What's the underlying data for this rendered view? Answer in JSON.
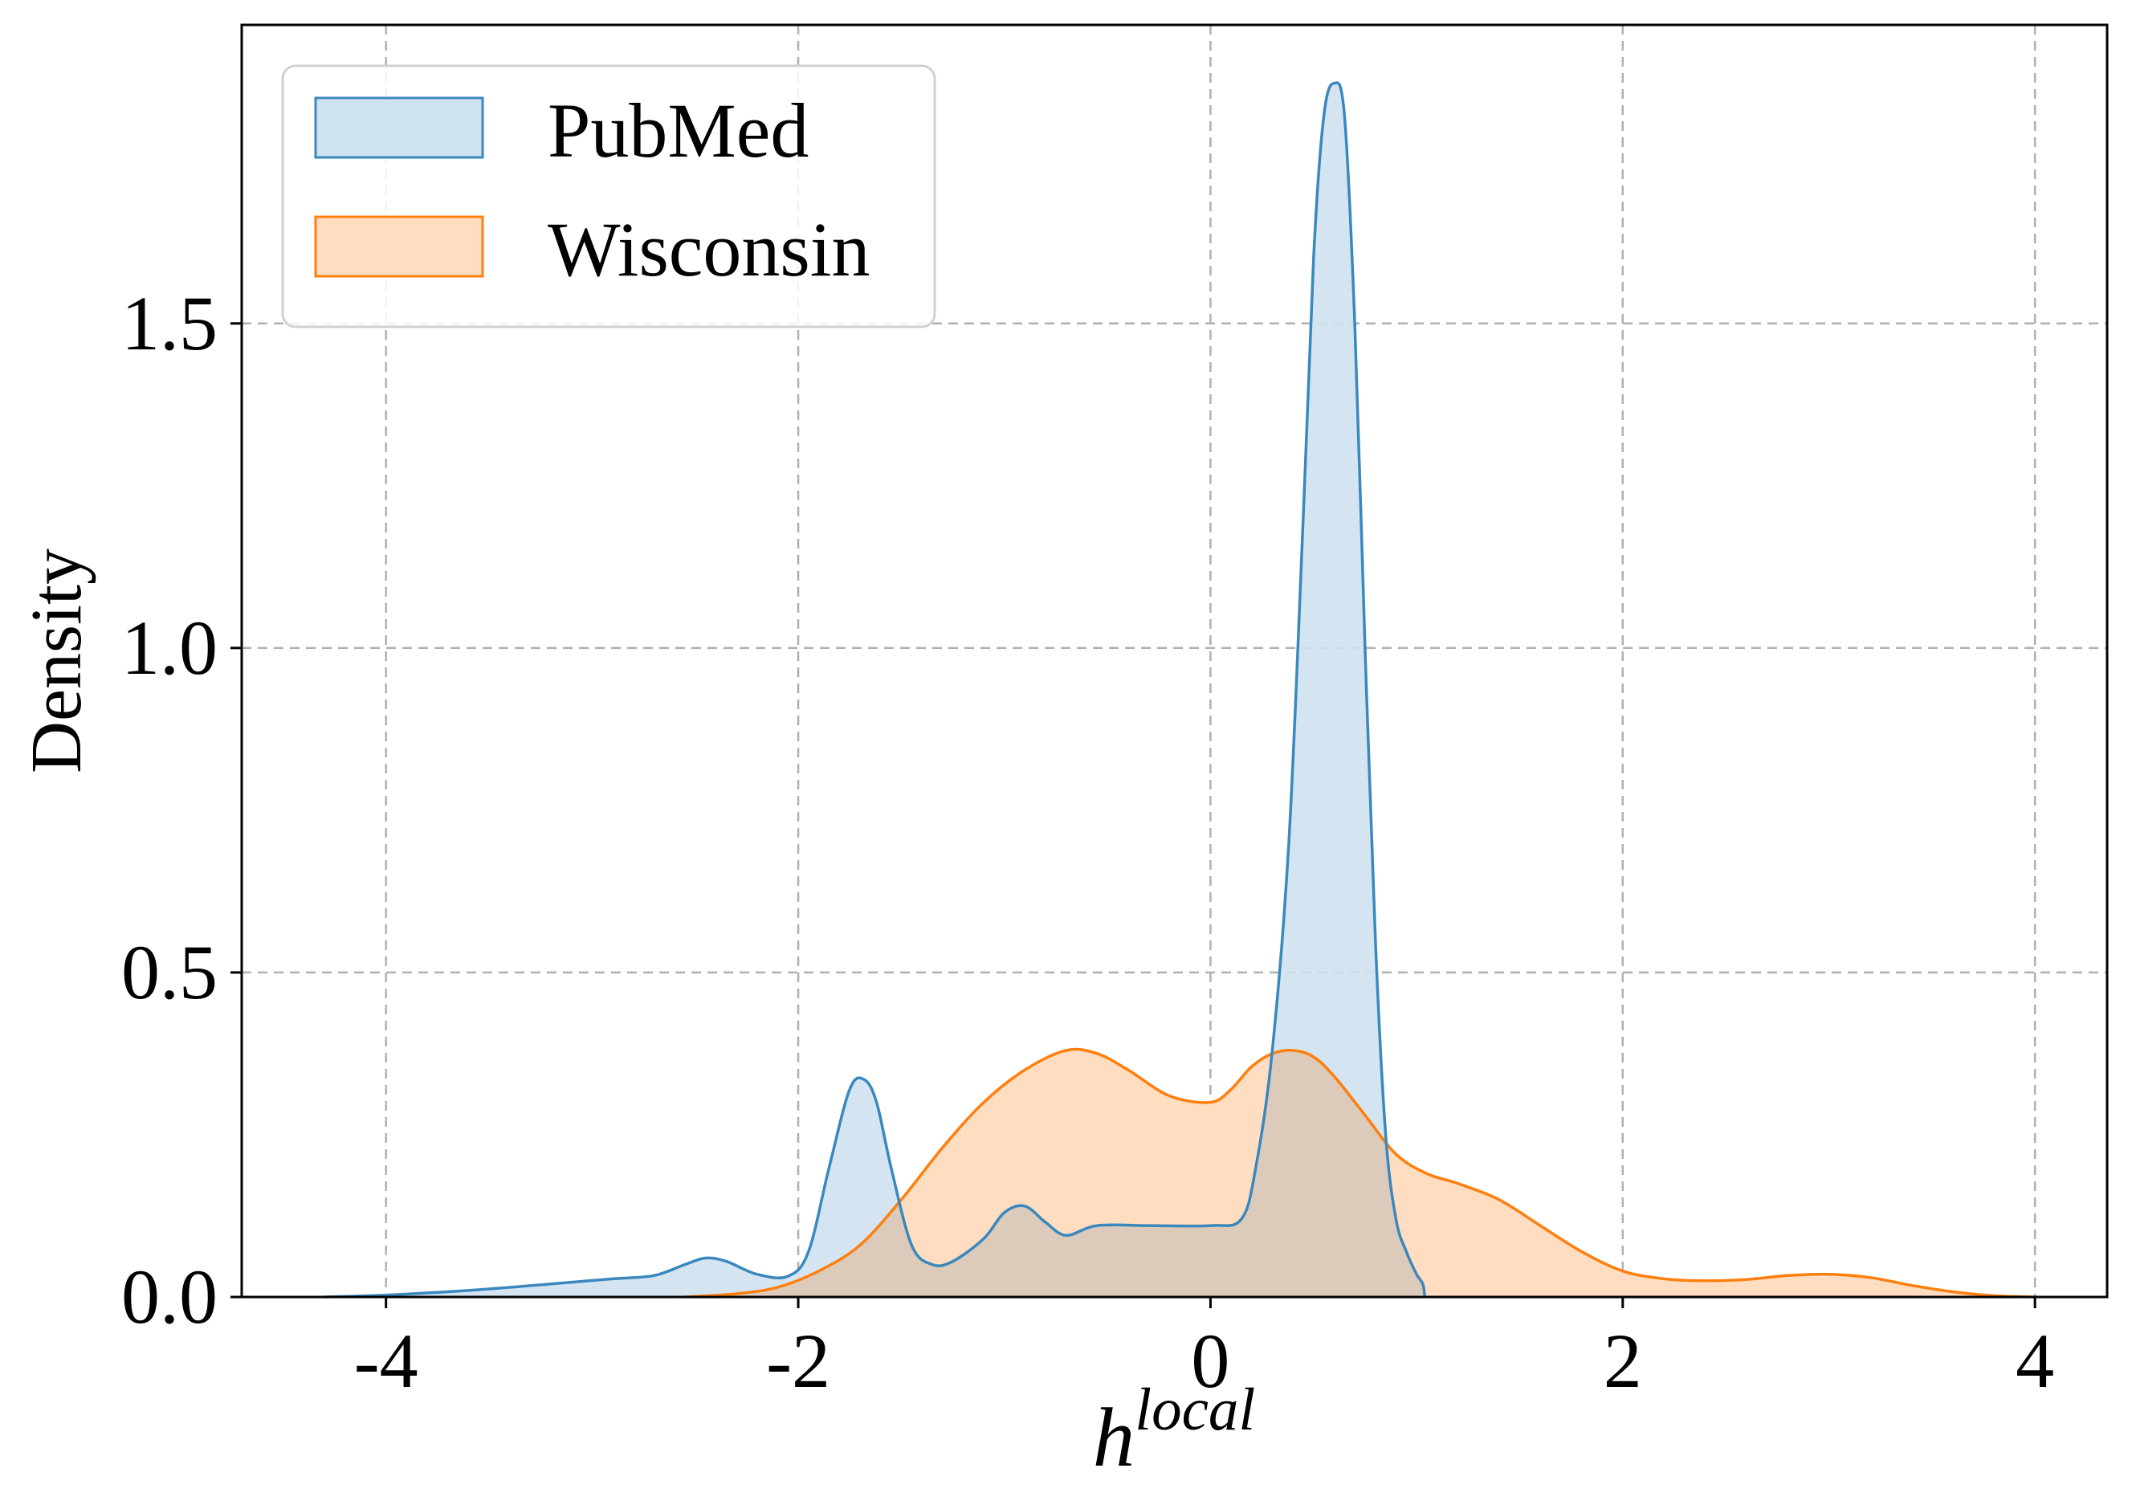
{
  "chart_data": {
    "type": "area",
    "xlabel": "h",
    "xlabel_superscript": "local",
    "ylabel": "Density",
    "xlim": [
      -4.7,
      4.35
    ],
    "ylim": [
      0,
      1.96
    ],
    "xticks": [
      -4,
      -2,
      0,
      2,
      4
    ],
    "xtick_labels": [
      "-4",
      "-2",
      "0",
      "2",
      "4"
    ],
    "yticks": [
      0.0,
      0.5,
      1.0,
      1.5
    ],
    "ytick_labels": [
      "0.0",
      "0.5",
      "1.0",
      "1.5"
    ],
    "grid": true,
    "legend_position": "top-left",
    "series": [
      {
        "name": "PubMed",
        "line_color": "#3a88be",
        "fill_color": "#cfe2ef",
        "x": [
          -4.3,
          -4.0,
          -3.6,
          -3.2,
          -2.9,
          -2.7,
          -2.55,
          -2.45,
          -2.35,
          -2.2,
          -2.05,
          -1.95,
          -1.85,
          -1.75,
          -1.68,
          -1.62,
          -1.55,
          -1.45,
          -1.35,
          -1.25,
          -1.1,
          -1.0,
          -0.9,
          -0.8,
          -0.7,
          -0.55,
          -0.3,
          0.0,
          0.15,
          0.22,
          0.3,
          0.38,
          0.45,
          0.5,
          0.55,
          0.6,
          0.65,
          0.7,
          0.75,
          0.8,
          0.85,
          0.9,
          0.95,
          1.0,
          1.03,
          1.04
        ],
        "y": [
          0.0,
          0.003,
          0.01,
          0.02,
          0.028,
          0.033,
          0.05,
          0.06,
          0.055,
          0.035,
          0.032,
          0.07,
          0.2,
          0.32,
          0.335,
          0.3,
          0.2,
          0.08,
          0.05,
          0.055,
          0.09,
          0.13,
          0.14,
          0.115,
          0.095,
          0.11,
          0.11,
          0.11,
          0.12,
          0.2,
          0.38,
          0.7,
          1.2,
          1.6,
          1.82,
          1.87,
          1.82,
          1.5,
          1.0,
          0.55,
          0.25,
          0.12,
          0.07,
          0.035,
          0.02,
          0.0
        ]
      },
      {
        "name": "Wisconsin",
        "line_color": "#ff7f0e",
        "fill_color": "#ffddc1",
        "x": [
          -2.55,
          -2.3,
          -2.1,
          -1.9,
          -1.7,
          -1.5,
          -1.3,
          -1.1,
          -0.9,
          -0.7,
          -0.55,
          -0.4,
          -0.2,
          0.0,
          0.1,
          0.2,
          0.3,
          0.4,
          0.5,
          0.6,
          0.75,
          0.9,
          1.05,
          1.2,
          1.4,
          1.6,
          1.8,
          2.0,
          2.2,
          2.4,
          2.6,
          2.8,
          3.0,
          3.2,
          3.4,
          3.6,
          3.8,
          4.0
        ],
        "y": [
          0.0,
          0.005,
          0.015,
          0.04,
          0.08,
          0.15,
          0.23,
          0.3,
          0.35,
          0.38,
          0.375,
          0.35,
          0.31,
          0.3,
          0.32,
          0.355,
          0.375,
          0.38,
          0.37,
          0.34,
          0.28,
          0.22,
          0.19,
          0.175,
          0.15,
          0.11,
          0.07,
          0.04,
          0.028,
          0.025,
          0.027,
          0.033,
          0.035,
          0.03,
          0.018,
          0.008,
          0.002,
          0.0
        ]
      }
    ]
  }
}
